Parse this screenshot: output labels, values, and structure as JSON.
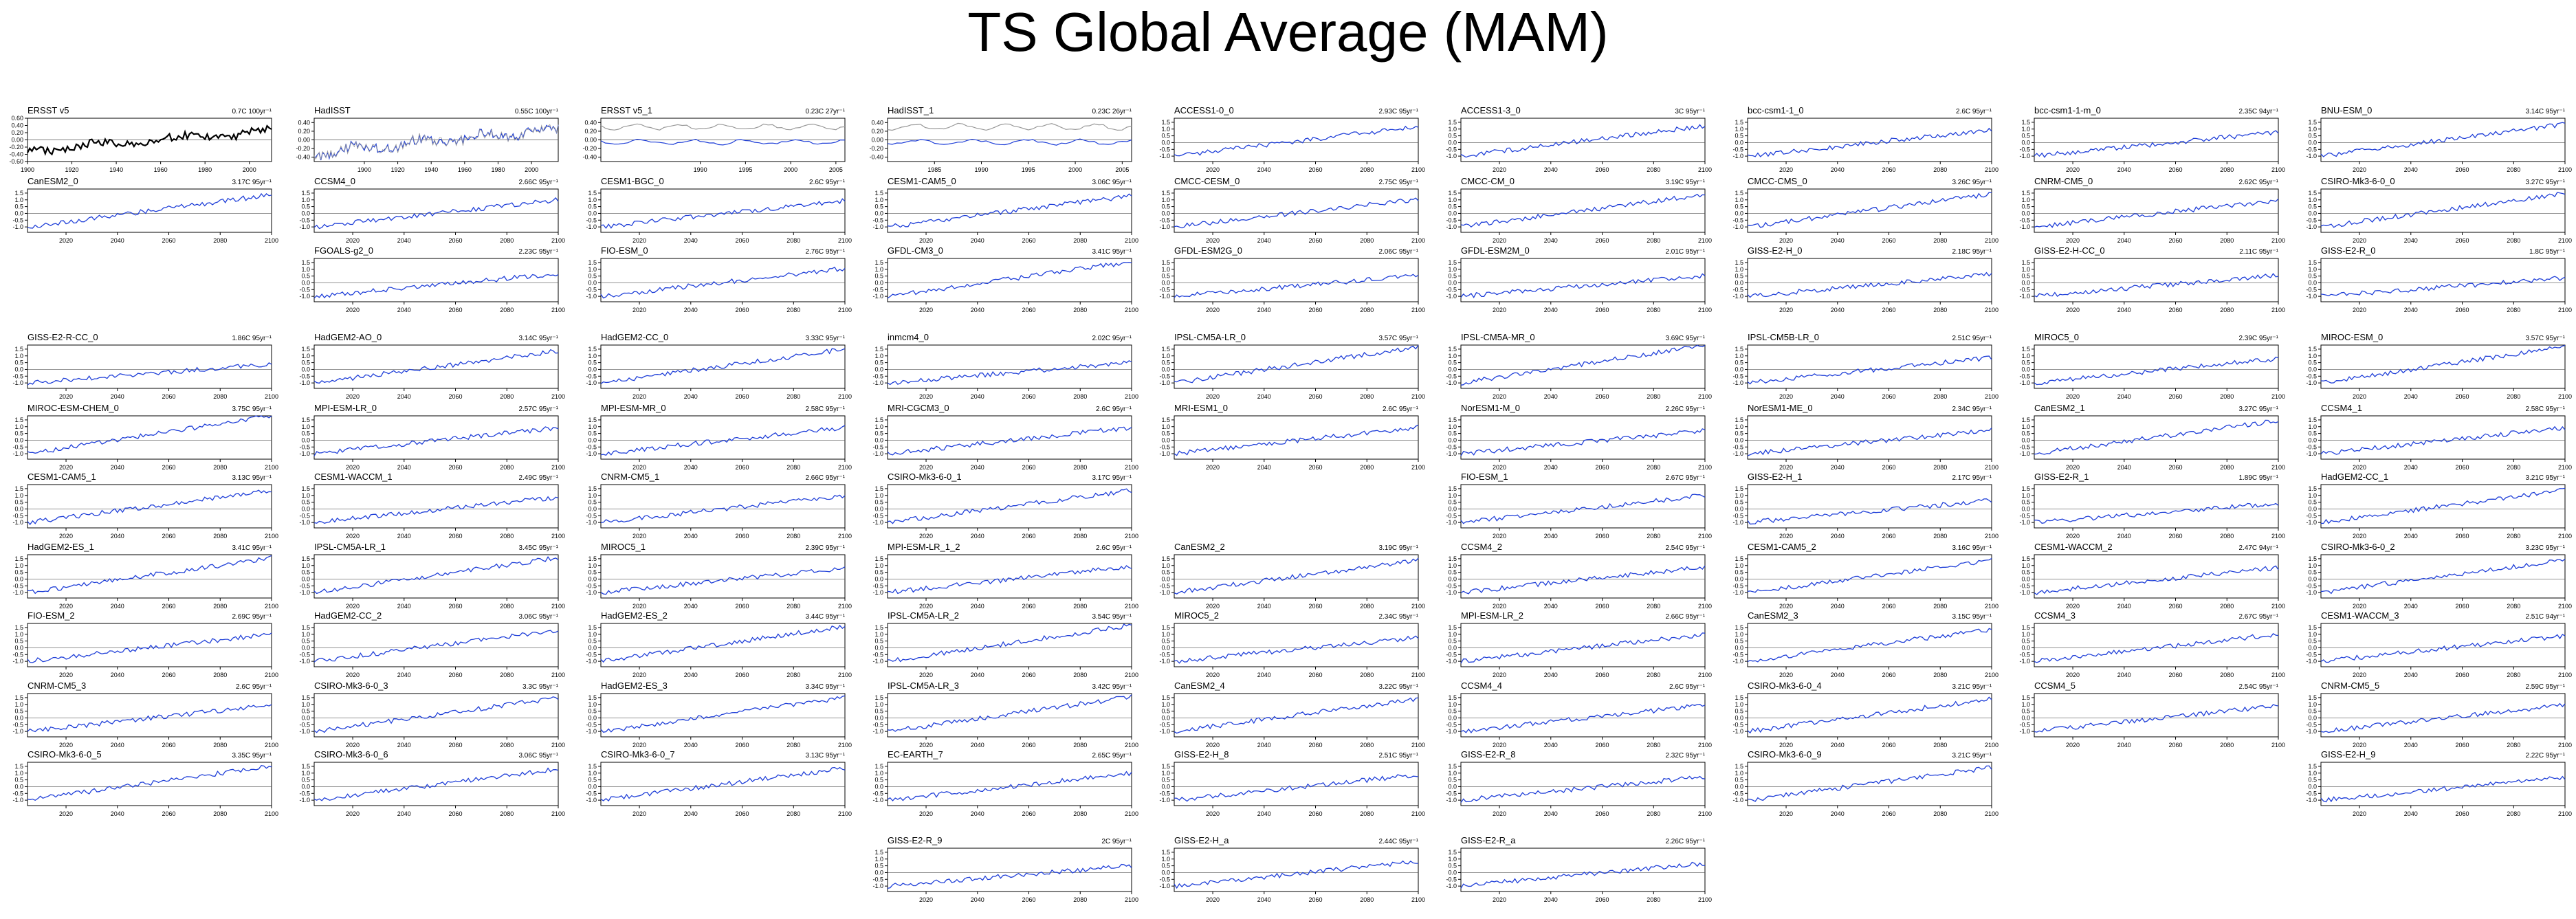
{
  "title": "TS Global Average (MAM)",
  "colors": {
    "model_line": "#1f3fd8",
    "obs_line": "#000000",
    "obs_ref_line": "#9a9a9a",
    "axis": "#000000"
  },
  "chart_data": [
    {
      "type": "line",
      "title": "ERSST v5",
      "trend": "0.7C 100yr⁻¹",
      "xticks": [
        "1900",
        "1920",
        "1940",
        "1960",
        "1980",
        "2000"
      ],
      "xlim": [
        1900,
        2010
      ],
      "yticks": [
        "0.60",
        "0.40",
        "0.20",
        "0.00",
        "-0.20",
        "-0.40",
        "-0.60"
      ],
      "ylim": [
        -0.6,
        0.6
      ],
      "style": "obs",
      "row": 0,
      "col": 0
    },
    {
      "type": "line",
      "title": "HadISST",
      "trend": "0.55C 100yr⁻¹",
      "xticks": [
        "1900",
        "1920",
        "1940",
        "1960",
        "1980",
        "2000"
      ],
      "xlim": [
        1870,
        2016
      ],
      "yticks": [
        "0.40",
        "0.20",
        "0.00",
        "-0.20",
        "-0.40"
      ],
      "ylim": [
        -0.5,
        0.5
      ],
      "style": "obs_blue",
      "row": 0,
      "col": 1
    },
    {
      "type": "line",
      "title": "ERSST v5_1",
      "trend": "0.23C 27yr⁻¹",
      "xticks": [
        "1990",
        "1995",
        "2000",
        "2005"
      ],
      "xlim": [
        1979,
        2006
      ],
      "yticks": [
        "0.40",
        "0.20",
        "0.00",
        "-0.20",
        "-0.40"
      ],
      "ylim": [
        -0.5,
        0.5
      ],
      "style": "obs_pair",
      "row": 0,
      "col": 2
    },
    {
      "type": "line",
      "title": "HadISST_1",
      "trend": "0.23C 26yr⁻¹",
      "xticks": [
        "1985",
        "1990",
        "1995",
        "2000",
        "2005"
      ],
      "xlim": [
        1980,
        2006
      ],
      "yticks": [
        "0.40",
        "0.20",
        "0.00",
        "-0.20",
        "-0.40"
      ],
      "ylim": [
        -0.5,
        0.5
      ],
      "style": "obs_pair",
      "row": 0,
      "col": 3
    },
    {
      "type": "line",
      "title": "ACCESS1-0_0",
      "trend": "2.93C 95yr⁻¹",
      "row": 0,
      "col": 4
    },
    {
      "type": "line",
      "title": "ACCESS1-3_0",
      "trend": "3C 95yr⁻¹",
      "row": 0,
      "col": 5
    },
    {
      "type": "line",
      "title": "bcc-csm1-1_0",
      "trend": "2.6C 95yr⁻¹",
      "row": 0,
      "col": 6
    },
    {
      "type": "line",
      "title": "bcc-csm1-1-m_0",
      "trend": "2.35C 94yr⁻¹",
      "row": 0,
      "col": 7
    },
    {
      "type": "line",
      "title": "BNU-ESM_0",
      "trend": "3.14C 95yr⁻¹",
      "row": 0,
      "col": 8
    },
    {
      "type": "line",
      "title": "CanESM2_0",
      "trend": "3.17C 95yr⁻¹",
      "row": 1,
      "col": 0
    },
    {
      "type": "line",
      "title": "CCSM4_0",
      "trend": "2.66C 95yr⁻¹",
      "row": 1,
      "col": 1
    },
    {
      "type": "line",
      "title": "CESM1-BGC_0",
      "trend": "2.6C 95yr⁻¹",
      "row": 1,
      "col": 2
    },
    {
      "type": "line",
      "title": "CESM1-CAM5_0",
      "trend": "3.06C 95yr⁻¹",
      "row": 1,
      "col": 3
    },
    {
      "type": "line",
      "title": "CMCC-CESM_0",
      "trend": "2.75C 95yr⁻¹",
      "row": 1,
      "col": 4
    },
    {
      "type": "line",
      "title": "CMCC-CM_0",
      "trend": "3.19C 95yr⁻¹",
      "row": 1,
      "col": 5
    },
    {
      "type": "line",
      "title": "CMCC-CMS_0",
      "trend": "3.26C 95yr⁻¹",
      "row": 1,
      "col": 6
    },
    {
      "type": "line",
      "title": "CNRM-CM5_0",
      "trend": "2.62C 95yr⁻¹",
      "row": 1,
      "col": 7
    },
    {
      "type": "line",
      "title": "CSIRO-Mk3-6-0_0",
      "trend": "3.27C 95yr⁻¹",
      "row": 1,
      "col": 8
    },
    {
      "type": "line",
      "title": "FGOALS-g2_0",
      "trend": "2.23C 95yr⁻¹",
      "row": 2,
      "col": 1
    },
    {
      "type": "line",
      "title": "FIO-ESM_0",
      "trend": "2.76C 95yr⁻¹",
      "row": 2,
      "col": 2
    },
    {
      "type": "line",
      "title": "GFDL-CM3_0",
      "trend": "3.41C 95yr⁻¹",
      "row": 2,
      "col": 3
    },
    {
      "type": "line",
      "title": "GFDL-ESM2G_0",
      "trend": "2.06C 95yr⁻¹",
      "row": 2,
      "col": 4
    },
    {
      "type": "line",
      "title": "GFDL-ESM2M_0",
      "trend": "2.01C 95yr⁻¹",
      "row": 2,
      "col": 5
    },
    {
      "type": "line",
      "title": "GISS-E2-H_0",
      "trend": "2.18C 95yr⁻¹",
      "row": 2,
      "col": 6
    },
    {
      "type": "line",
      "title": "GISS-E2-H-CC_0",
      "trend": "2.11C 95yr⁻¹",
      "row": 2,
      "col": 7
    },
    {
      "type": "line",
      "title": "GISS-E2-R_0",
      "trend": "1.8C 95yr⁻¹",
      "row": 2,
      "col": 8
    },
    {
      "type": "line",
      "title": "GISS-E2-R-CC_0",
      "trend": "1.86C 95yr⁻¹",
      "row": 3,
      "col": 0
    },
    {
      "type": "line",
      "title": "HadGEM2-AO_0",
      "trend": "3.14C 95yr⁻¹",
      "row": 3,
      "col": 1
    },
    {
      "type": "line",
      "title": "HadGEM2-CC_0",
      "trend": "3.33C 95yr⁻¹",
      "row": 3,
      "col": 2
    },
    {
      "type": "line",
      "title": "inmcm4_0",
      "trend": "2.02C 95yr⁻¹",
      "row": 3,
      "col": 3
    },
    {
      "type": "line",
      "title": "IPSL-CM5A-LR_0",
      "trend": "3.57C 95yr⁻¹",
      "row": 3,
      "col": 4
    },
    {
      "type": "line",
      "title": "IPSL-CM5A-MR_0",
      "trend": "3.69C 95yr⁻¹",
      "row": 3,
      "col": 5
    },
    {
      "type": "line",
      "title": "IPSL-CM5B-LR_0",
      "trend": "2.51C 95yr⁻¹",
      "row": 3,
      "col": 6
    },
    {
      "type": "line",
      "title": "MIROC5_0",
      "trend": "2.39C 95yr⁻¹",
      "row": 3,
      "col": 7
    },
    {
      "type": "line",
      "title": "MIROC-ESM_0",
      "trend": "3.57C 95yr⁻¹",
      "row": 3,
      "col": 8
    },
    {
      "type": "line",
      "title": "MIROC-ESM-CHEM_0",
      "trend": "3.75C 95yr⁻¹",
      "row": 4,
      "col": 0
    },
    {
      "type": "line",
      "title": "MPI-ESM-LR_0",
      "trend": "2.57C 95yr⁻¹",
      "row": 4,
      "col": 1
    },
    {
      "type": "line",
      "title": "MPI-ESM-MR_0",
      "trend": "2.58C 95yr⁻¹",
      "row": 4,
      "col": 2
    },
    {
      "type": "line",
      "title": "MRI-CGCM3_0",
      "trend": "2.6C 95yr⁻¹",
      "row": 4,
      "col": 3
    },
    {
      "type": "line",
      "title": "MRI-ESM1_0",
      "trend": "2.6C 95yr⁻¹",
      "row": 4,
      "col": 4
    },
    {
      "type": "line",
      "title": "NorESM1-M_0",
      "trend": "2.26C 95yr⁻¹",
      "row": 4,
      "col": 5
    },
    {
      "type": "line",
      "title": "NorESM1-ME_0",
      "trend": "2.34C 95yr⁻¹",
      "row": 4,
      "col": 6
    },
    {
      "type": "line",
      "title": "CanESM2_1",
      "trend": "3.27C 95yr⁻¹",
      "row": 4,
      "col": 7
    },
    {
      "type": "line",
      "title": "CCSM4_1",
      "trend": "2.58C 95yr⁻¹",
      "row": 4,
      "col": 8
    },
    {
      "type": "line",
      "title": "CESM1-CAM5_1",
      "trend": "3.13C 95yr⁻¹",
      "row": 5,
      "col": 0
    },
    {
      "type": "line",
      "title": "CESM1-WACCM_1",
      "trend": "2.49C 95yr⁻¹",
      "row": 5,
      "col": 1
    },
    {
      "type": "line",
      "title": "CNRM-CM5_1",
      "trend": "2.66C 95yr⁻¹",
      "row": 5,
      "col": 2
    },
    {
      "type": "line",
      "title": "CSIRO-Mk3-6-0_1",
      "trend": "3.17C 95yr⁻¹",
      "row": 5,
      "col": 3
    },
    {
      "type": "line",
      "title": "FIO-ESM_1",
      "trend": "2.67C 95yr⁻¹",
      "row": 5,
      "col": 5
    },
    {
      "type": "line",
      "title": "GISS-E2-H_1",
      "trend": "2.17C 95yr⁻¹",
      "row": 5,
      "col": 6
    },
    {
      "type": "line",
      "title": "GISS-E2-R_1",
      "trend": "1.89C 95yr⁻¹",
      "row": 5,
      "col": 7
    },
    {
      "type": "line",
      "title": "HadGEM2-CC_1",
      "trend": "3.21C 95yr⁻¹",
      "row": 5,
      "col": 8
    },
    {
      "type": "line",
      "title": "HadGEM2-ES_1",
      "trend": "3.41C 95yr⁻¹",
      "row": 6,
      "col": 0
    },
    {
      "type": "line",
      "title": "IPSL-CM5A-LR_1",
      "trend": "3.45C 95yr⁻¹",
      "row": 6,
      "col": 1
    },
    {
      "type": "line",
      "title": "MIROC5_1",
      "trend": "2.39C 95yr⁻¹",
      "row": 6,
      "col": 2
    },
    {
      "type": "line",
      "title": "MPI-ESM-LR_1_2",
      "trend": "2.6C 95yr⁻¹",
      "row": 6,
      "col": 3
    },
    {
      "type": "line",
      "title": "CanESM2_2",
      "trend": "3.19C 95yr⁻¹",
      "row": 6,
      "col": 4
    },
    {
      "type": "line",
      "title": "CCSM4_2",
      "trend": "2.54C 95yr⁻¹",
      "row": 6,
      "col": 5
    },
    {
      "type": "line",
      "title": "CESM1-CAM5_2",
      "trend": "3.16C 95yr⁻¹",
      "row": 6,
      "col": 6
    },
    {
      "type": "line",
      "title": "CESM1-WACCM_2",
      "trend": "2.47C 94yr⁻¹",
      "row": 6,
      "col": 7
    },
    {
      "type": "line",
      "title": "CSIRO-Mk3-6-0_2",
      "trend": "3.23C 95yr⁻¹",
      "row": 6,
      "col": 8
    },
    {
      "type": "line",
      "title": "FIO-ESM_2",
      "trend": "2.69C 95yr⁻¹",
      "row": 7,
      "col": 0
    },
    {
      "type": "line",
      "title": "HadGEM2-CC_2",
      "trend": "3.06C 95yr⁻¹",
      "row": 7,
      "col": 1
    },
    {
      "type": "line",
      "title": "HadGEM2-ES_2",
      "trend": "3.44C 95yr⁻¹",
      "row": 7,
      "col": 2
    },
    {
      "type": "line",
      "title": "IPSL-CM5A-LR_2",
      "trend": "3.54C 95yr⁻¹",
      "row": 7,
      "col": 3
    },
    {
      "type": "line",
      "title": "MIROC5_2",
      "trend": "2.34C 95yr⁻¹",
      "row": 7,
      "col": 4
    },
    {
      "type": "line",
      "title": "MPI-ESM-LR_2",
      "trend": "2.66C 95yr⁻¹",
      "row": 7,
      "col": 5
    },
    {
      "type": "line",
      "title": "CanESM2_3",
      "trend": "3.15C 95yr⁻¹",
      "row": 7,
      "col": 6
    },
    {
      "type": "line",
      "title": "CCSM4_3",
      "trend": "2.67C 95yr⁻¹",
      "row": 7,
      "col": 7
    },
    {
      "type": "line",
      "title": "CESM1-WACCM_3",
      "trend": "2.51C 94yr⁻¹",
      "row": 7,
      "col": 8
    },
    {
      "type": "line",
      "title": "CNRM-CM5_3",
      "trend": "2.6C 95yr⁻¹",
      "row": 8,
      "col": 0
    },
    {
      "type": "line",
      "title": "CSIRO-Mk3-6-0_3",
      "trend": "3.3C 95yr⁻¹",
      "row": 8,
      "col": 1
    },
    {
      "type": "line",
      "title": "HadGEM2-ES_3",
      "trend": "3.34C 95yr⁻¹",
      "row": 8,
      "col": 2
    },
    {
      "type": "line",
      "title": "IPSL-CM5A-LR_3",
      "trend": "3.42C 95yr⁻¹",
      "row": 8,
      "col": 3
    },
    {
      "type": "line",
      "title": "CanESM2_4",
      "trend": "3.22C 95yr⁻¹",
      "row": 8,
      "col": 4
    },
    {
      "type": "line",
      "title": "CCSM4_4",
      "trend": "2.6C 95yr⁻¹",
      "row": 8,
      "col": 5
    },
    {
      "type": "line",
      "title": "CSIRO-Mk3-6-0_4",
      "trend": "3.21C 95yr⁻¹",
      "row": 8,
      "col": 6
    },
    {
      "type": "line",
      "title": "CCSM4_5",
      "trend": "2.54C 95yr⁻¹",
      "row": 8,
      "col": 7
    },
    {
      "type": "line",
      "title": "CNRM-CM5_5",
      "trend": "2.59C 95yr⁻¹",
      "row": 8,
      "col": 8
    },
    {
      "type": "line",
      "title": "CSIRO-Mk3-6-0_5",
      "trend": "3.35C 95yr⁻¹",
      "row": 9,
      "col": 0
    },
    {
      "type": "line",
      "title": "CSIRO-Mk3-6-0_6",
      "trend": "3.06C 95yr⁻¹",
      "row": 9,
      "col": 1
    },
    {
      "type": "line",
      "title": "CSIRO-Mk3-6-0_7",
      "trend": "3.13C 95yr⁻¹",
      "row": 9,
      "col": 2
    },
    {
      "type": "line",
      "title": "EC-EARTH_7",
      "trend": "2.65C 95yr⁻¹",
      "row": 9,
      "col": 3
    },
    {
      "type": "line",
      "title": "GISS-E2-H_8",
      "trend": "2.51C 95yr⁻¹",
      "row": 9,
      "col": 4
    },
    {
      "type": "line",
      "title": "GISS-E2-R_8",
      "trend": "2.32C 95yr⁻¹",
      "row": 9,
      "col": 5
    },
    {
      "type": "line",
      "title": "CSIRO-Mk3-6-0_9",
      "trend": "3.21C 95yr⁻¹",
      "row": 9,
      "col": 6
    },
    {
      "type": "line",
      "title": "GISS-E2-H_9",
      "trend": "2.22C 95yr⁻¹",
      "row": 9,
      "col": 8
    },
    {
      "type": "line",
      "title": "GISS-E2-R_9",
      "trend": "2C 95yr⁻¹",
      "row": 10,
      "col": 3
    },
    {
      "type": "line",
      "title": "GISS-E2-H_a",
      "trend": "2.44C 95yr⁻¹",
      "row": 10,
      "col": 4
    },
    {
      "type": "line",
      "title": "GISS-E2-R_a",
      "trend": "2.26C 95yr⁻¹",
      "row": 10,
      "col": 5
    }
  ],
  "model_axes": {
    "xticks": [
      "2020",
      "2040",
      "2060",
      "2080",
      "2100"
    ],
    "xlim": [
      2005,
      2100
    ],
    "yticks": [
      "1.5",
      "1.0",
      "0.5",
      "0.0",
      "-0.5",
      "-1.0"
    ],
    "ylim": [
      -1.4,
      1.8
    ]
  }
}
